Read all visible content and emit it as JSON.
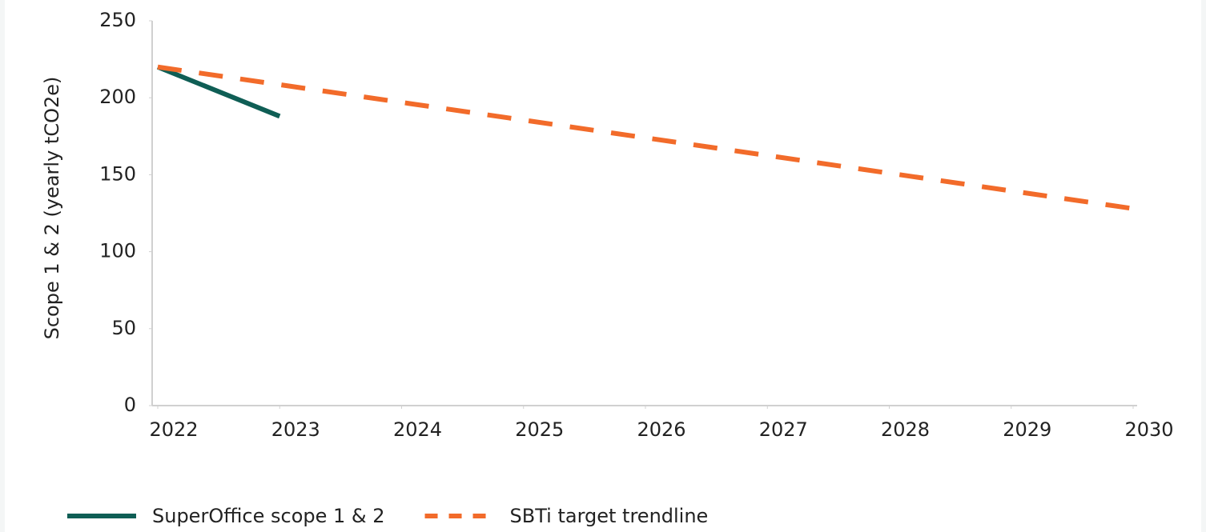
{
  "chart_data": {
    "type": "line",
    "y_label": "Scope 1 & 2 (yearly tCO2e)",
    "x": [
      2022,
      2023,
      2024,
      2025,
      2026,
      2027,
      2028,
      2029,
      2030
    ],
    "series": [
      {
        "name": "SuperOffice scope 1 & 2",
        "color": "#0f5e55",
        "dashed": false,
        "values": [
          220,
          188,
          null,
          null,
          null,
          null,
          null,
          null,
          null
        ]
      },
      {
        "name": "SBTi target trendline",
        "color": "#f26b2a",
        "dashed": true,
        "values": [
          220,
          208.5,
          197,
          185.5,
          174,
          162.5,
          151,
          139.5,
          128
        ]
      }
    ],
    "xlim": [
      2022,
      2030
    ],
    "xticks": [
      2022,
      2023,
      2024,
      2025,
      2026,
      2027,
      2028,
      2029,
      2030
    ],
    "ylim": [
      0,
      250
    ],
    "yticks": [
      0,
      50,
      100,
      150,
      200,
      250
    ],
    "grid": false,
    "legend": "bottom-left"
  }
}
